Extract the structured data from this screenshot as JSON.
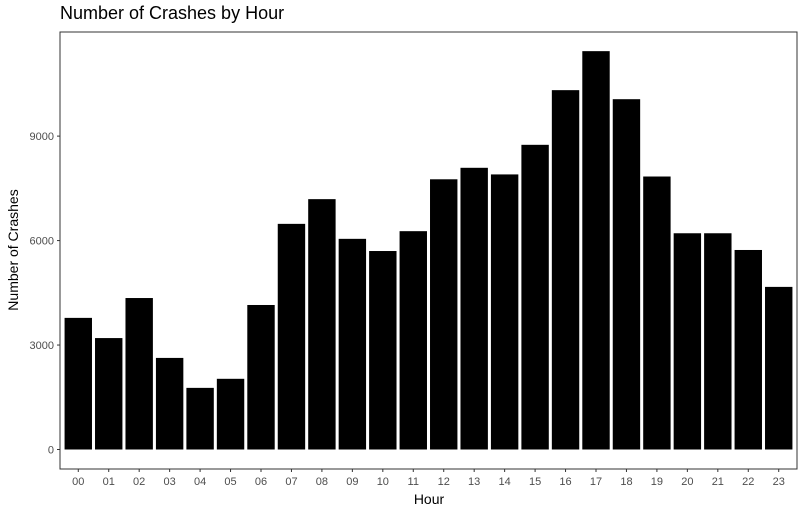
{
  "chart_data": {
    "type": "bar",
    "title": "Number of Crashes by Hour",
    "xlabel": "Hour",
    "ylabel": "Number of Crashes",
    "categories": [
      "00",
      "01",
      "02",
      "03",
      "04",
      "05",
      "06",
      "07",
      "08",
      "09",
      "10",
      "11",
      "12",
      "13",
      "14",
      "15",
      "16",
      "17",
      "18",
      "19",
      "20",
      "21",
      "22",
      "23"
    ],
    "values": [
      3780,
      3200,
      4350,
      2630,
      1770,
      2030,
      4150,
      6480,
      7190,
      6050,
      5700,
      6270,
      7760,
      8090,
      7900,
      8750,
      10320,
      11440,
      10060,
      7840,
      6210,
      6210,
      5730,
      4670
    ],
    "yticks": [
      0,
      3000,
      6000,
      9000
    ],
    "ytick_labels": [
      "0",
      "3000",
      "6000",
      "9000"
    ],
    "ylim": [
      -560,
      11990
    ],
    "bar_color": "#000000",
    "grid": false,
    "legend": "none"
  }
}
